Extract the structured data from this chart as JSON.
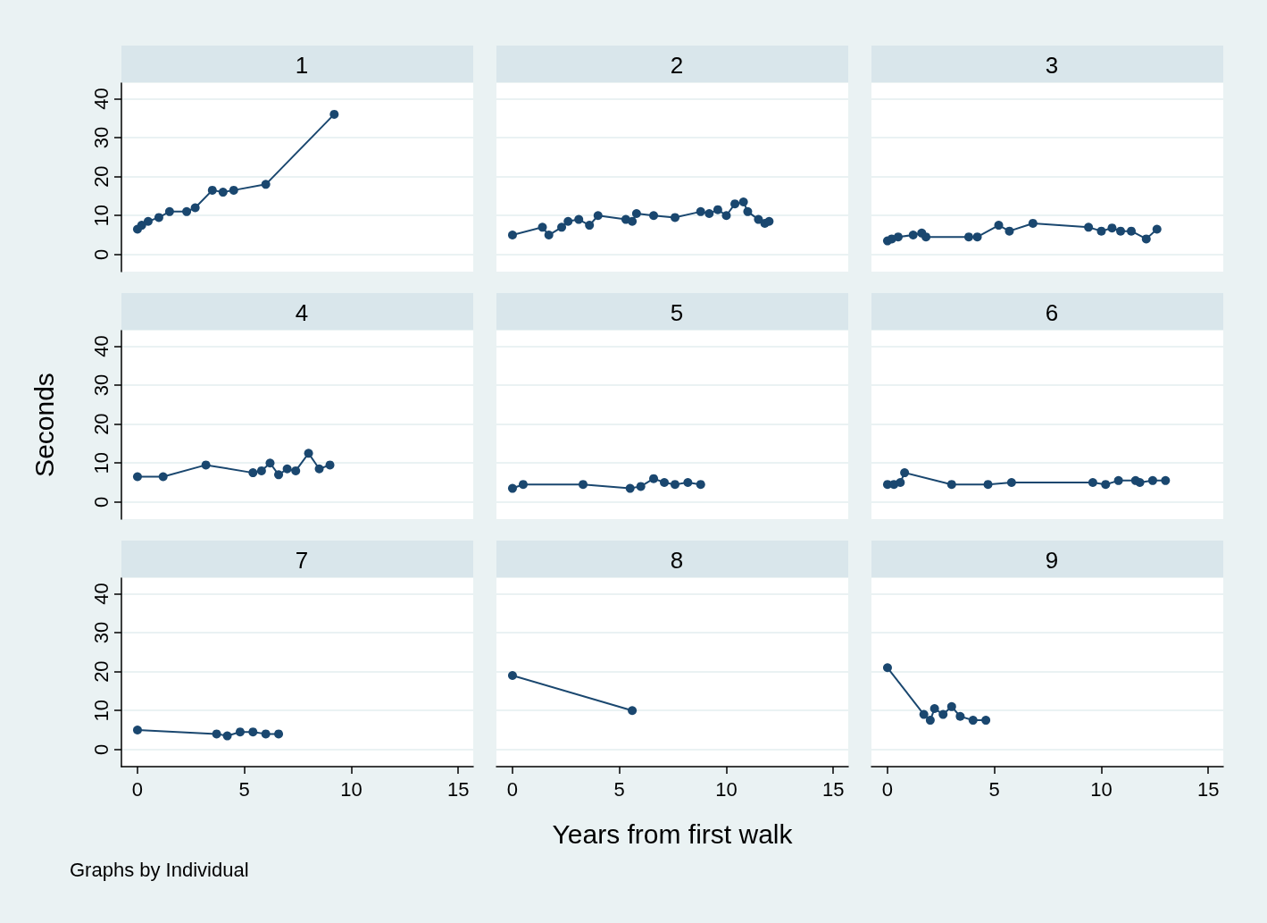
{
  "chart_data": [
    {
      "type": "line",
      "title": "1",
      "color": "#1a476f",
      "marker": "circle",
      "grid": "y",
      "tick_labels": "y",
      "xlim": [
        -0.75,
        15.7
      ],
      "ylim": [
        -4.4,
        44
      ],
      "xticks": [
        0,
        5,
        10,
        15
      ],
      "yticks": [
        0,
        10,
        20,
        30,
        40
      ],
      "x": [
        0,
        0.2,
        0.5,
        1,
        1.5,
        2.3,
        2.7,
        3.5,
        4,
        4.5,
        6,
        9.2
      ],
      "values": [
        6.5,
        7.5,
        8.5,
        9.5,
        11,
        11,
        12,
        16.5,
        16,
        16.5,
        18,
        36
      ]
    },
    {
      "type": "line",
      "title": "2",
      "color": "#1a476f",
      "marker": "circle",
      "grid": "y",
      "tick_labels": false,
      "xlim": [
        -0.75,
        15.7
      ],
      "ylim": [
        -4.4,
        44
      ],
      "xticks": [
        0,
        5,
        10,
        15
      ],
      "yticks": [
        0,
        10,
        20,
        30,
        40
      ],
      "x": [
        0,
        1.4,
        1.7,
        2.3,
        2.6,
        3.1,
        3.6,
        4,
        5.3,
        5.6,
        5.8,
        6.6,
        7.6,
        8.8,
        9.2,
        9.6,
        10,
        10.4,
        10.8,
        11,
        11.5,
        11.8,
        12
      ],
      "values": [
        5,
        7,
        5,
        7,
        8.5,
        9,
        7.5,
        10,
        9,
        8.5,
        10.5,
        10,
        9.5,
        11,
        10.5,
        11.5,
        10,
        13,
        13.5,
        11,
        9,
        8,
        8.5
      ]
    },
    {
      "type": "line",
      "title": "3",
      "color": "#1a476f",
      "marker": "circle",
      "grid": "y",
      "tick_labels": false,
      "xlim": [
        -0.75,
        15.7
      ],
      "ylim": [
        -4.4,
        44
      ],
      "xticks": [
        0,
        5,
        10,
        15
      ],
      "yticks": [
        0,
        10,
        20,
        30,
        40
      ],
      "x": [
        0,
        0.2,
        0.5,
        1.2,
        1.6,
        1.8,
        3.8,
        4.2,
        5.2,
        5.7,
        6.8,
        9.4,
        10,
        10.5,
        10.9,
        11.4,
        12.1,
        12.6
      ],
      "values": [
        3.5,
        4,
        4.5,
        5,
        5.5,
        4.5,
        4.5,
        4.5,
        7.5,
        6,
        8,
        7,
        6,
        6.8,
        6,
        6,
        4,
        6.5
      ]
    },
    {
      "type": "line",
      "title": "4",
      "ylabel": "Seconds",
      "color": "#1a476f",
      "marker": "circle",
      "grid": "y",
      "tick_labels": "y",
      "xlim": [
        -0.75,
        15.7
      ],
      "ylim": [
        -4.4,
        44
      ],
      "xticks": [
        0,
        5,
        10,
        15
      ],
      "yticks": [
        0,
        10,
        20,
        30,
        40
      ],
      "x": [
        0,
        1.2,
        3.2,
        5.4,
        5.8,
        6.2,
        6.6,
        7,
        7.4,
        8,
        8.5,
        9
      ],
      "values": [
        6.5,
        6.5,
        9.5,
        7.5,
        8,
        10,
        7,
        8.5,
        8,
        12.5,
        8.5,
        9.5
      ]
    },
    {
      "type": "line",
      "title": "5",
      "color": "#1a476f",
      "marker": "circle",
      "grid": "y",
      "tick_labels": false,
      "xlim": [
        -0.75,
        15.7
      ],
      "ylim": [
        -4.4,
        44
      ],
      "xticks": [
        0,
        5,
        10,
        15
      ],
      "yticks": [
        0,
        10,
        20,
        30,
        40
      ],
      "x": [
        0,
        0.5,
        3.3,
        5.5,
        6,
        6.6,
        7.1,
        7.6,
        8.2,
        8.8
      ],
      "values": [
        3.5,
        4.5,
        4.5,
        3.5,
        4,
        6,
        5,
        4.5,
        5,
        4.5
      ]
    },
    {
      "type": "line",
      "title": "6",
      "color": "#1a476f",
      "marker": "circle",
      "grid": "y",
      "tick_labels": false,
      "xlim": [
        -0.75,
        15.7
      ],
      "ylim": [
        -4.4,
        44
      ],
      "xticks": [
        0,
        5,
        10,
        15
      ],
      "yticks": [
        0,
        10,
        20,
        30,
        40
      ],
      "x": [
        0,
        0.3,
        0.6,
        0.8,
        3,
        4.7,
        5.8,
        9.6,
        10.2,
        10.8,
        11.6,
        11.8,
        12.4,
        13
      ],
      "values": [
        4.5,
        4.5,
        5,
        7.5,
        4.5,
        4.5,
        5,
        5,
        4.5,
        5.5,
        5.5,
        5,
        5.5,
        5.5
      ]
    },
    {
      "type": "line",
      "title": "7",
      "annotations": [
        "Graphs by Individual"
      ],
      "color": "#1a476f",
      "marker": "circle",
      "grid": "y",
      "xlim": [
        -0.75,
        15.7
      ],
      "ylim": [
        -4.4,
        44
      ],
      "xticks": [
        0,
        5,
        10,
        15
      ],
      "yticks": [
        0,
        10,
        20,
        30,
        40
      ],
      "x": [
        0,
        3.7,
        4.2,
        4.8,
        5.4,
        6,
        6.6
      ],
      "values": [
        5,
        4,
        3.5,
        4.5,
        4.5,
        4,
        4
      ]
    },
    {
      "type": "line",
      "title": "8",
      "xlabel": "Years from first walk",
      "color": "#1a476f",
      "marker": "circle",
      "grid": "y",
      "tick_labels": "x",
      "xlim": [
        -0.75,
        15.7
      ],
      "ylim": [
        -4.4,
        44
      ],
      "xticks": [
        0,
        5,
        10,
        15
      ],
      "yticks": [
        0,
        10,
        20,
        30,
        40
      ],
      "x": [
        0,
        5.6
      ],
      "values": [
        19,
        10
      ]
    },
    {
      "type": "line",
      "title": "9",
      "color": "#1a476f",
      "marker": "circle",
      "grid": "y",
      "tick_labels": "x",
      "xlim": [
        -0.75,
        15.7
      ],
      "ylim": [
        -4.4,
        44
      ],
      "xticks": [
        0,
        5,
        10,
        15
      ],
      "yticks": [
        0,
        10,
        20,
        30,
        40
      ],
      "x": [
        0,
        1.7,
        2,
        2.2,
        2.6,
        3,
        3.4,
        4,
        4.6
      ],
      "values": [
        21,
        9,
        7.5,
        10.5,
        9,
        11,
        8.5,
        7.5,
        7.5
      ]
    }
  ]
}
